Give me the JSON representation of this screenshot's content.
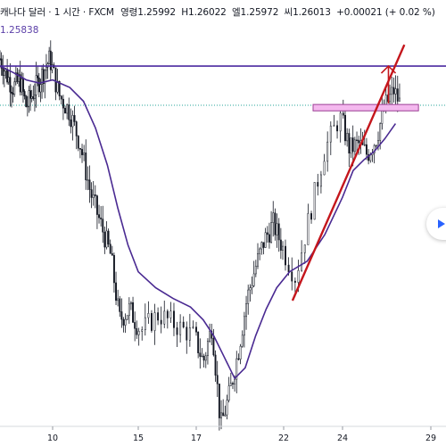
{
  "header": {
    "symbol": "캐나다 달러 · 1 시간 · FXCM",
    "open": "영령1.25992",
    "high": "H1.26022",
    "low": "엘1.25972",
    "close": "씨1.26013",
    "change": "+0.00021 (+ 0.02 %)"
  },
  "indicator": {
    "value": "1.25838"
  },
  "colors": {
    "candle": "#131722",
    "ma": "#4a2a92",
    "resistance": "#4b2aa0",
    "trendline": "#c4161c",
    "zone_fill": "#f4b8ee",
    "zone_stroke": "#9c3f95",
    "arrow": "#c4161c",
    "dotted": "#26a69a"
  },
  "chart_data": {
    "type": "candlestick",
    "title": "",
    "x_ticks": [
      "10",
      "15",
      "17",
      "22",
      "24",
      "29"
    ],
    "y_range": [
      1.23,
      1.27
    ],
    "ma_last": 1.25838,
    "resistance_level": 1.2638,
    "last_price_level": 1.26013,
    "support_zone": [
      1.2596,
      1.2602
    ],
    "trendline": {
      "from": {
        "day": 22.3,
        "price": 1.2418
      },
      "to": {
        "day": 27.5,
        "price": 1.2658
      }
    },
    "arrow": {
      "day": 26.6,
      "from_price": 1.2603,
      "to_price": 1.2638
    },
    "price_path": [
      [
        6.0,
        1.2645
      ],
      [
        6.5,
        1.263
      ],
      [
        7.0,
        1.2618
      ],
      [
        7.5,
        1.2625
      ],
      [
        8.0,
        1.26
      ],
      [
        8.6,
        1.2615
      ],
      [
        9.2,
        1.263
      ],
      [
        9.8,
        1.2645
      ],
      [
        10.4,
        1.261
      ],
      [
        11.0,
        1.2595
      ],
      [
        11.6,
        1.2565
      ],
      [
        12.2,
        1.252
      ],
      [
        12.8,
        1.249
      ],
      [
        13.4,
        1.246
      ],
      [
        13.9,
        1.24
      ],
      [
        14.5,
        1.241
      ],
      [
        15.1,
        1.239
      ],
      [
        15.7,
        1.2405
      ],
      [
        16.3,
        1.2395
      ],
      [
        16.9,
        1.2385
      ],
      [
        17.4,
        1.236
      ],
      [
        17.9,
        1.2395
      ],
      [
        18.4,
        1.23
      ],
      [
        18.9,
        1.233
      ],
      [
        19.4,
        1.237
      ],
      [
        19.9,
        1.242
      ],
      [
        20.4,
        1.245
      ],
      [
        20.9,
        1.2475
      ],
      [
        21.4,
        1.249
      ],
      [
        21.9,
        1.247
      ],
      [
        22.4,
        1.244
      ],
      [
        22.9,
        1.25
      ],
      [
        23.4,
        1.256
      ],
      [
        23.9,
        1.259
      ],
      [
        24.4,
        1.256
      ],
      [
        24.9,
        1.2565
      ],
      [
        25.4,
        1.2555
      ],
      [
        25.9,
        1.257
      ],
      [
        26.4,
        1.26
      ],
      [
        26.9,
        1.2615
      ],
      [
        27.3,
        1.2601
      ]
    ],
    "ma_path": [
      [
        6.0,
        1.2638
      ],
      [
        7.0,
        1.2632
      ],
      [
        8.0,
        1.2625
      ],
      [
        9.0,
        1.2622
      ],
      [
        10.0,
        1.2625
      ],
      [
        11.0,
        1.2618
      ],
      [
        11.8,
        1.2605
      ],
      [
        12.5,
        1.258
      ],
      [
        13.2,
        1.2545
      ],
      [
        13.8,
        1.2505
      ],
      [
        14.4,
        1.247
      ],
      [
        15.0,
        1.2445
      ],
      [
        15.6,
        1.243
      ],
      [
        16.2,
        1.242
      ],
      [
        16.8,
        1.2412
      ],
      [
        17.4,
        1.24
      ],
      [
        18.0,
        1.2385
      ],
      [
        18.6,
        1.2365
      ],
      [
        19.2,
        1.2345
      ],
      [
        19.8,
        1.2355
      ],
      [
        20.4,
        1.2385
      ],
      [
        21.0,
        1.241
      ],
      [
        21.6,
        1.243
      ],
      [
        22.2,
        1.2445
      ],
      [
        22.8,
        1.2455
      ],
      [
        23.4,
        1.248
      ],
      [
        24.0,
        1.2515
      ],
      [
        24.6,
        1.254
      ],
      [
        25.2,
        1.255
      ],
      [
        25.8,
        1.2558
      ],
      [
        26.4,
        1.257
      ],
      [
        27.0,
        1.2584
      ]
    ]
  }
}
